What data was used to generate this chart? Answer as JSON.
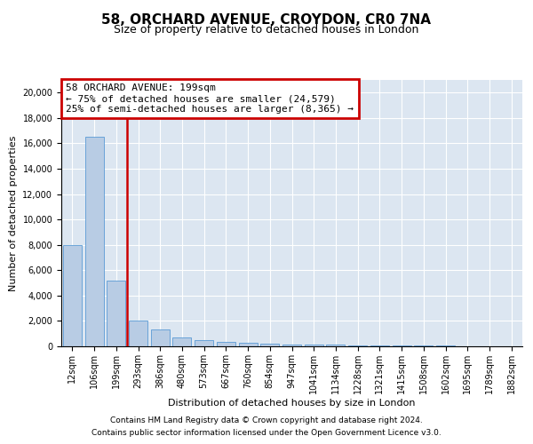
{
  "title": "58, ORCHARD AVENUE, CROYDON, CR0 7NA",
  "subtitle": "Size of property relative to detached houses in London",
  "xlabel": "Distribution of detached houses by size in London",
  "ylabel": "Number of detached properties",
  "categories": [
    "12sqm",
    "106sqm",
    "199sqm",
    "293sqm",
    "386sqm",
    "480sqm",
    "573sqm",
    "667sqm",
    "760sqm",
    "854sqm",
    "947sqm",
    "1041sqm",
    "1134sqm",
    "1228sqm",
    "1321sqm",
    "1415sqm",
    "1508sqm",
    "1602sqm",
    "1695sqm",
    "1789sqm",
    "1882sqm"
  ],
  "values": [
    8000,
    16500,
    5200,
    2000,
    1350,
    700,
    500,
    380,
    300,
    220,
    170,
    140,
    110,
    90,
    75,
    60,
    50,
    40,
    35,
    28,
    22
  ],
  "bar_color": "#b8cce4",
  "bar_edge_color": "#5b9bd5",
  "marker_index": 2,
  "vline_color": "#cc0000",
  "annotation_title": "58 ORCHARD AVENUE: 199sqm",
  "annotation_line1": "← 75% of detached houses are smaller (24,579)",
  "annotation_line2": "25% of semi-detached houses are larger (8,365) →",
  "ylim": [
    0,
    21000
  ],
  "yticks": [
    0,
    2000,
    4000,
    6000,
    8000,
    10000,
    12000,
    14000,
    16000,
    18000,
    20000
  ],
  "footnote1": "Contains HM Land Registry data © Crown copyright and database right 2024.",
  "footnote2": "Contains public sector information licensed under the Open Government Licence v3.0.",
  "title_fontsize": 11,
  "subtitle_fontsize": 9,
  "annotation_fontsize": 8,
  "tick_fontsize": 7,
  "label_fontsize": 8,
  "footnote_fontsize": 6.5,
  "plot_bg_color": "#dce6f1",
  "grid_color": "#ffffff"
}
